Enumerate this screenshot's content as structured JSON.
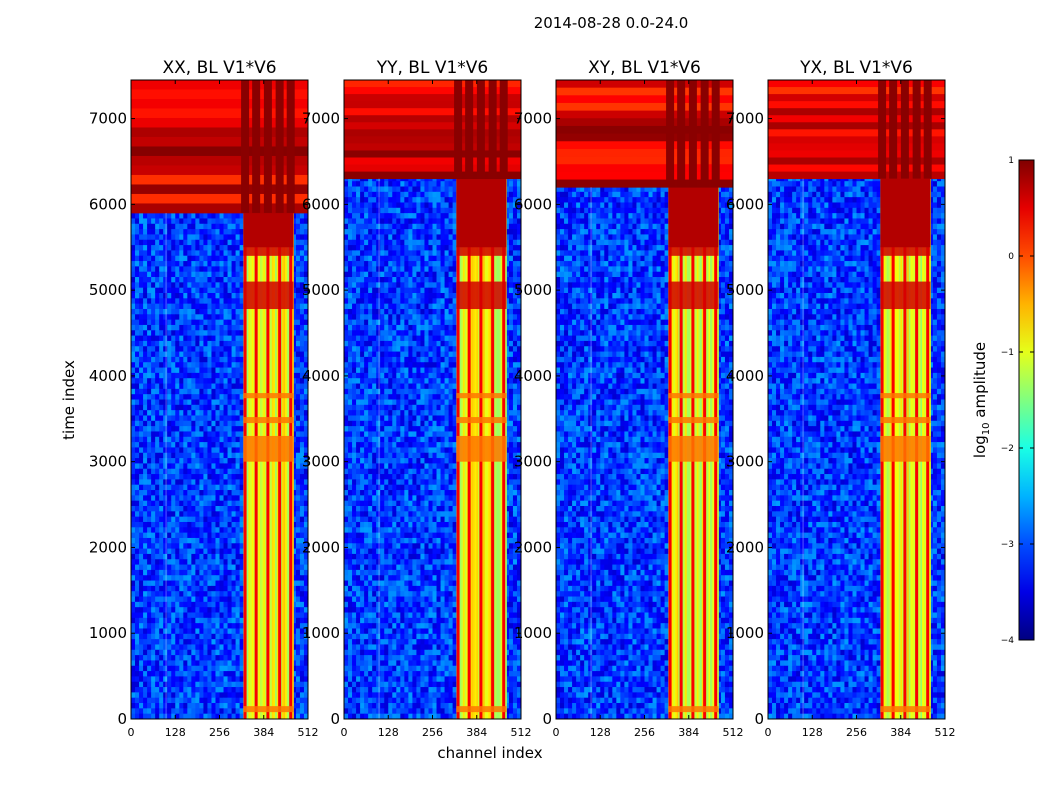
{
  "chart_data": {
    "type": "heatmap",
    "suptitle": "2014-08-28 0.0-24.0",
    "xlabel": "channel index",
    "ylabel": "time index",
    "xlim": [
      0,
      512
    ],
    "ylim": [
      0,
      7450
    ],
    "xticks": [
      0,
      128,
      256,
      384,
      512
    ],
    "yticks": [
      0,
      1000,
      2000,
      3000,
      4000,
      5000,
      6000,
      7000
    ],
    "panels": [
      {
        "title": "XX, BL V1*V6",
        "flag_top": 5900,
        "flag_left": 0
      },
      {
        "title": "YY, BL V1*V6",
        "flag_top": 6300,
        "flag_left": 0
      },
      {
        "title": "XY, BL V1*V6",
        "flag_top": 6200,
        "flag_left": 0
      },
      {
        "title": "YX, BL V1*V6",
        "flag_top": 6300,
        "flag_left": 0
      }
    ],
    "colorbar": {
      "label": "log10 amplitude",
      "label_main": "log",
      "label_sub": "10",
      "label_rest": " amplitude",
      "range": [
        -4,
        1
      ],
      "ticks": [
        "1",
        "0",
        "−1",
        "−2",
        "−3",
        "−4"
      ],
      "tick_values": [
        1,
        0,
        -1,
        -2,
        -3,
        -4
      ],
      "colormap": "jet"
    },
    "bright_channel_band": [
      325,
      470
    ],
    "strong_lines": [
      330,
      362,
      396,
      430,
      462
    ],
    "flagged_rows_ranges": [
      [
        6300,
        7450
      ]
    ]
  }
}
